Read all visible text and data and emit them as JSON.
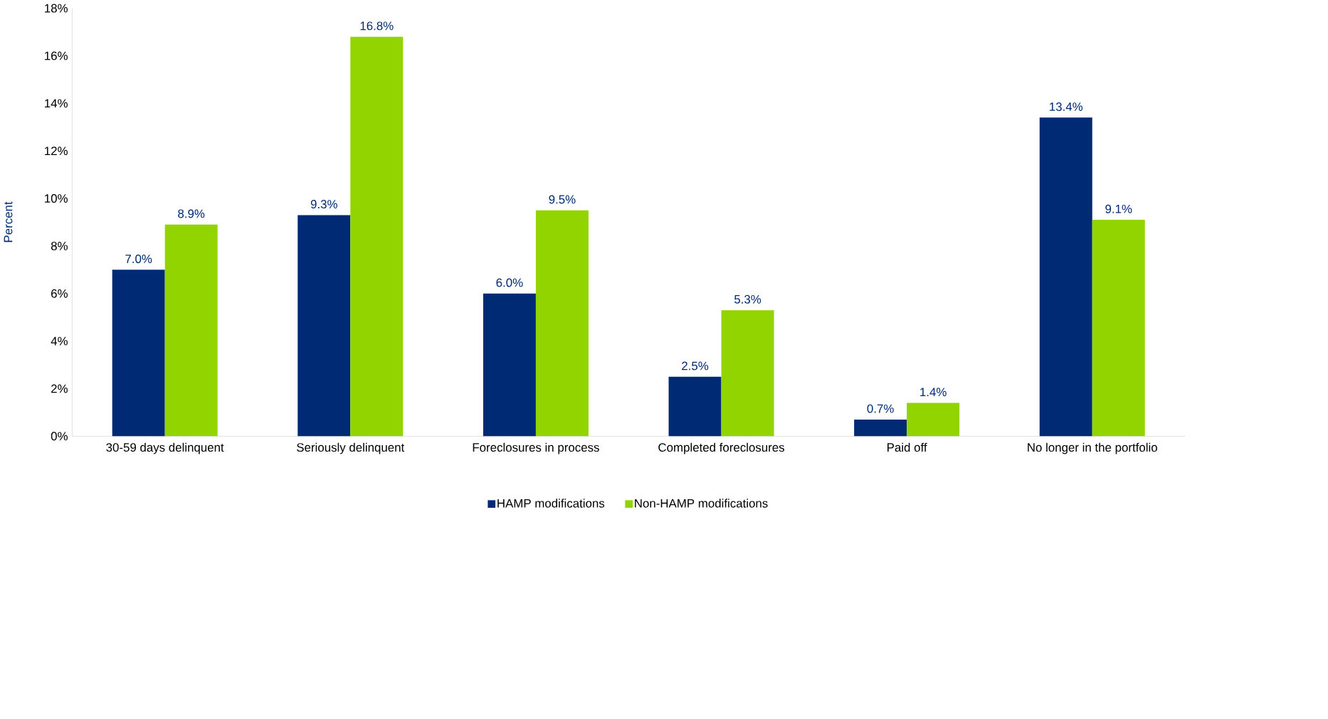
{
  "chart_data": {
    "type": "bar",
    "ylabel": "Percent",
    "categories": [
      "30-59 days delinquent",
      "Seriously delinquent",
      "Foreclosures in process",
      "Completed foreclosures",
      "Paid off",
      "No longer in the portfolio"
    ],
    "series": [
      {
        "name": "HAMP modifications",
        "color": "#002a74",
        "values": [
          7.0,
          9.3,
          6.0,
          2.5,
          0.7,
          13.4
        ],
        "value_labels": [
          "7.0%",
          "9.3%",
          "6.0%",
          "2.5%",
          "0.7%",
          "13.4%"
        ]
      },
      {
        "name": "Non-HAMP modifications",
        "color": "#92d400",
        "values": [
          8.9,
          16.8,
          9.5,
          5.3,
          1.4,
          9.1
        ],
        "value_labels": [
          "8.9%",
          "16.8%",
          "9.5%",
          "5.3%",
          "1.4%",
          "9.1%"
        ]
      }
    ],
    "ylim": [
      0,
      18
    ],
    "yticks": [
      {
        "value": 0,
        "label": "0%"
      },
      {
        "value": 2,
        "label": "2%"
      },
      {
        "value": 4,
        "label": "4%"
      },
      {
        "value": 6,
        "label": "6%"
      },
      {
        "value": 8,
        "label": "8%"
      },
      {
        "value": 10,
        "label": "10%"
      },
      {
        "value": 12,
        "label": "12%"
      },
      {
        "value": 14,
        "label": "14%"
      },
      {
        "value": 16,
        "label": "16%"
      },
      {
        "value": 18,
        "label": "18%"
      }
    ],
    "legend": "bottom",
    "grid": false
  }
}
